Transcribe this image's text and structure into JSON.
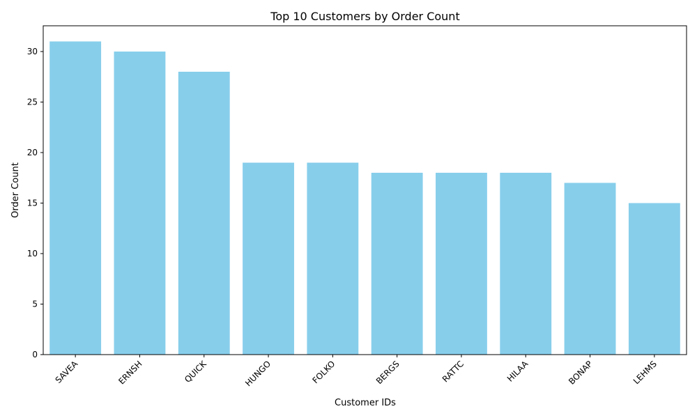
{
  "chart_data": {
    "type": "bar",
    "title": "Top 10 Customers by Order Count",
    "xlabel": "Customer IDs",
    "ylabel": "Order Count",
    "categories": [
      "SAVEA",
      "ERNSH",
      "QUICK",
      "HUNGO",
      "FOLKO",
      "BERGS",
      "RATTC",
      "HILAA",
      "BONAP",
      "LEHMS"
    ],
    "values": [
      31,
      30,
      28,
      19,
      19,
      18,
      18,
      18,
      17,
      15
    ],
    "ylim": [
      0,
      32.55
    ],
    "yticks": [
      0,
      5,
      10,
      15,
      20,
      25,
      30
    ],
    "bar_color": "#87CEEB",
    "grid": false,
    "legend": "none"
  }
}
